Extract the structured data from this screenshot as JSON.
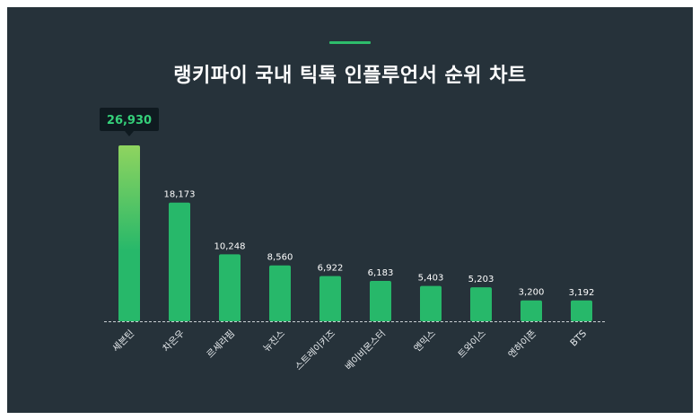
{
  "header": {
    "title": "랭키파이 국내 틱톡 인플루언서 순위 차트"
  },
  "chart_data": {
    "type": "bar",
    "title": "랭키파이 국내 틱톡 인플루언서 순위 차트",
    "categories": [
      "세븐틴",
      "차은우",
      "르세라핌",
      "뉴진스",
      "스트레이키즈",
      "베이비몬스터",
      "엔믹스",
      "트와이스",
      "엔하이픈",
      "BTS"
    ],
    "values": [
      26930,
      18173,
      10248,
      8560,
      6922,
      6183,
      5403,
      5203,
      3200,
      3192
    ],
    "value_labels": [
      "26,930",
      "18,173",
      "10,248",
      "8,560",
      "6,922",
      "6,183",
      "5,403",
      "5,203",
      "3,200",
      "3,192"
    ],
    "highlight_index": 0,
    "ylim": [
      0,
      26930
    ],
    "grid": false,
    "colors": {
      "bar": "#27b86a",
      "highlight_top": "#8fd45f",
      "highlight_bottom": "#27b86a",
      "tooltip_bg": "#0f1a20",
      "tooltip_text": "#35d07a",
      "baseline": "#c9ced2"
    }
  }
}
